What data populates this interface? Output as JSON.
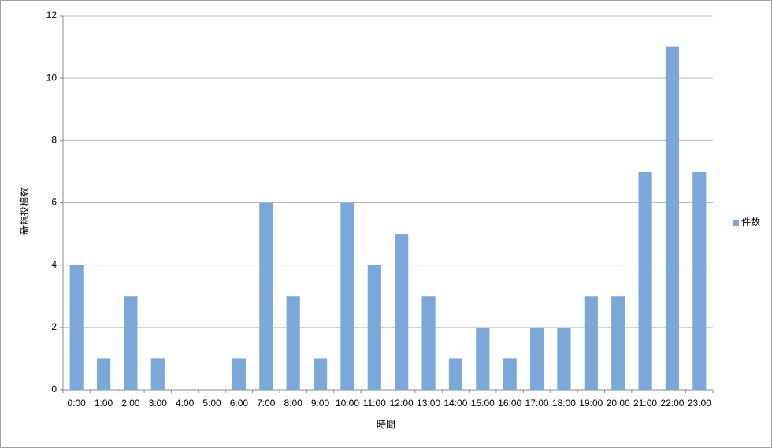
{
  "chart_data": {
    "type": "bar",
    "x_label": "時間",
    "y_label": "新規投稿数",
    "categories": [
      "0:00",
      "1:00",
      "2:00",
      "3:00",
      "4:00",
      "5:00",
      "6:00",
      "7:00",
      "8:00",
      "9:00",
      "10:00",
      "11:00",
      "12:00",
      "13:00",
      "14:00",
      "15:00",
      "16:00",
      "17:00",
      "18:00",
      "19:00",
      "20:00",
      "21:00",
      "22:00",
      "23:00"
    ],
    "series": [
      {
        "name": "件数",
        "color": "#7ba7d9",
        "values": [
          4,
          1,
          3,
          1,
          0,
          0,
          1,
          6,
          3,
          1,
          6,
          4,
          5,
          3,
          1,
          2,
          1,
          2,
          2,
          3,
          3,
          7,
          11,
          7
        ]
      }
    ],
    "ylim": [
      0,
      12
    ],
    "yticks": [
      0,
      2,
      4,
      6,
      8,
      10,
      12
    ],
    "grid": true,
    "legend": "right"
  }
}
